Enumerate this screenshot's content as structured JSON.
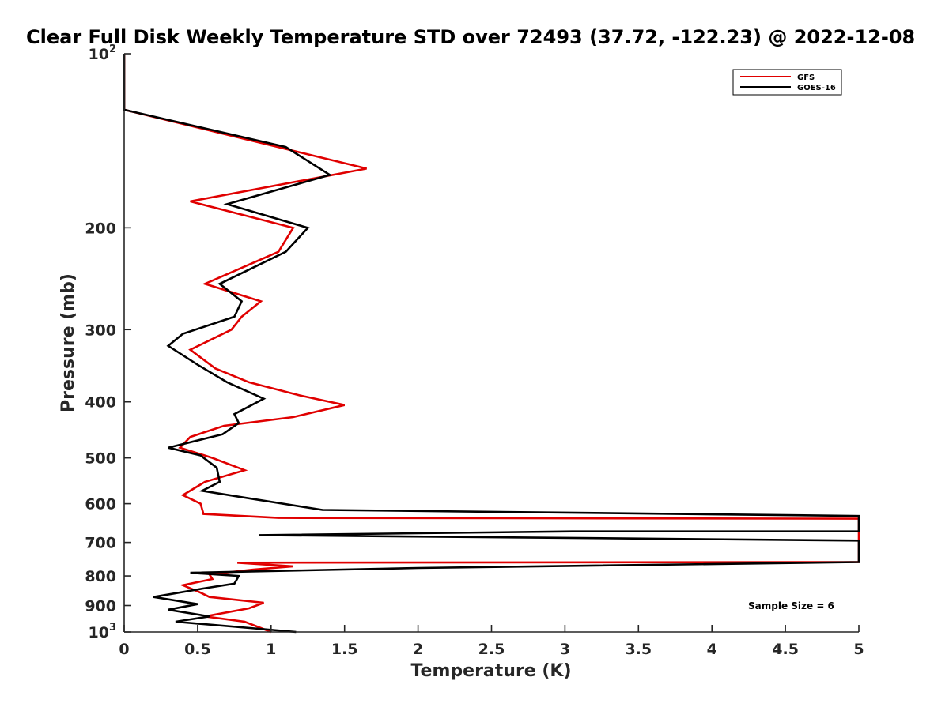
{
  "chart_data": {
    "type": "line",
    "title": "Clear Full Disk Weekly Temperature STD over 72493 (37.72, -122.23) @ 2022-12-08",
    "xlabel": "Temperature (K)",
    "ylabel": "Pressure (mb)",
    "xlim": [
      0,
      5
    ],
    "ylim": [
      100,
      1000
    ],
    "y_scale": "log",
    "y_reversed": true,
    "x_ticks": [
      "0",
      "0.5",
      "1",
      "1.5",
      "2",
      "2.5",
      "3",
      "3.5",
      "4",
      "4.5",
      "5"
    ],
    "x_tick_values": [
      0,
      0.5,
      1,
      1.5,
      2,
      2.5,
      3,
      3.5,
      4,
      4.5,
      5
    ],
    "y_ticks": [
      {
        "value": 100,
        "base": "10",
        "exp": "2"
      },
      {
        "value": 200,
        "label": "200"
      },
      {
        "value": 300,
        "label": "300"
      },
      {
        "value": 400,
        "label": "400"
      },
      {
        "value": 500,
        "label": "500"
      },
      {
        "value": 600,
        "label": "600"
      },
      {
        "value": 700,
        "label": "700"
      },
      {
        "value": 800,
        "label": "800"
      },
      {
        "value": 900,
        "label": "900"
      },
      {
        "value": 1000,
        "base": "10",
        "exp": "3"
      }
    ],
    "legend_position": "top-right",
    "grid": false,
    "annotation": "Sample Size = 6",
    "series": [
      {
        "name": "GFS",
        "color": "#e00000",
        "points": [
          [
            0,
            100
          ],
          [
            0,
            125
          ],
          [
            0.8,
            140
          ],
          [
            1.65,
            158
          ],
          [
            0.45,
            180
          ],
          [
            1.15,
            200
          ],
          [
            1.05,
            220
          ],
          [
            0.55,
            250
          ],
          [
            0.93,
            268
          ],
          [
            0.8,
            285
          ],
          [
            0.73,
            300
          ],
          [
            0.45,
            325
          ],
          [
            0.62,
            350
          ],
          [
            0.85,
            370
          ],
          [
            1.2,
            390
          ],
          [
            1.5,
            405
          ],
          [
            1.15,
            425
          ],
          [
            0.68,
            440
          ],
          [
            0.45,
            460
          ],
          [
            0.38,
            480
          ],
          [
            0.6,
            500
          ],
          [
            0.82,
            525
          ],
          [
            0.55,
            550
          ],
          [
            0.4,
            580
          ],
          [
            0.52,
            600
          ],
          [
            0.54,
            625
          ],
          [
            1.05,
            635
          ],
          [
            5,
            637
          ],
          [
            5,
            757
          ],
          [
            0.77,
            759
          ],
          [
            1.15,
            770
          ],
          [
            0.88,
            780
          ],
          [
            0.58,
            795
          ],
          [
            0.6,
            810
          ],
          [
            0.4,
            830
          ],
          [
            0.52,
            855
          ],
          [
            0.58,
            870
          ],
          [
            0.95,
            890
          ],
          [
            0.85,
            910
          ],
          [
            0.55,
            940
          ],
          [
            0.82,
            960
          ],
          [
            1,
            1000
          ]
        ]
      },
      {
        "name": "GOES-16",
        "color": "#000000",
        "points": [
          [
            0,
            100
          ],
          [
            0,
            125
          ],
          [
            1.1,
            145
          ],
          [
            1.4,
            162
          ],
          [
            0.7,
            182
          ],
          [
            1.25,
            200
          ],
          [
            1.1,
            220
          ],
          [
            0.65,
            250
          ],
          [
            0.8,
            268
          ],
          [
            0.75,
            285
          ],
          [
            0.4,
            305
          ],
          [
            0.3,
            320
          ],
          [
            0.5,
            345
          ],
          [
            0.7,
            370
          ],
          [
            0.95,
            395
          ],
          [
            0.75,
            420
          ],
          [
            0.78,
            435
          ],
          [
            0.67,
            455
          ],
          [
            0.3,
            480
          ],
          [
            0.52,
            495
          ],
          [
            0.63,
            520
          ],
          [
            0.65,
            550
          ],
          [
            0.53,
            570
          ],
          [
            0.9,
            590
          ],
          [
            1.35,
            615
          ],
          [
            5,
            630
          ],
          [
            5,
            670
          ],
          [
            3.05,
            670
          ],
          [
            0.92,
            680
          ],
          [
            5,
            695
          ],
          [
            5,
            757
          ],
          [
            2,
            775
          ],
          [
            0.45,
            790
          ],
          [
            0.78,
            800
          ],
          [
            0.75,
            825
          ],
          [
            0.55,
            840
          ],
          [
            0.2,
            870
          ],
          [
            0.5,
            895
          ],
          [
            0.3,
            915
          ],
          [
            0.58,
            940
          ],
          [
            0.35,
            960
          ],
          [
            1.17,
            1000
          ]
        ]
      }
    ]
  }
}
